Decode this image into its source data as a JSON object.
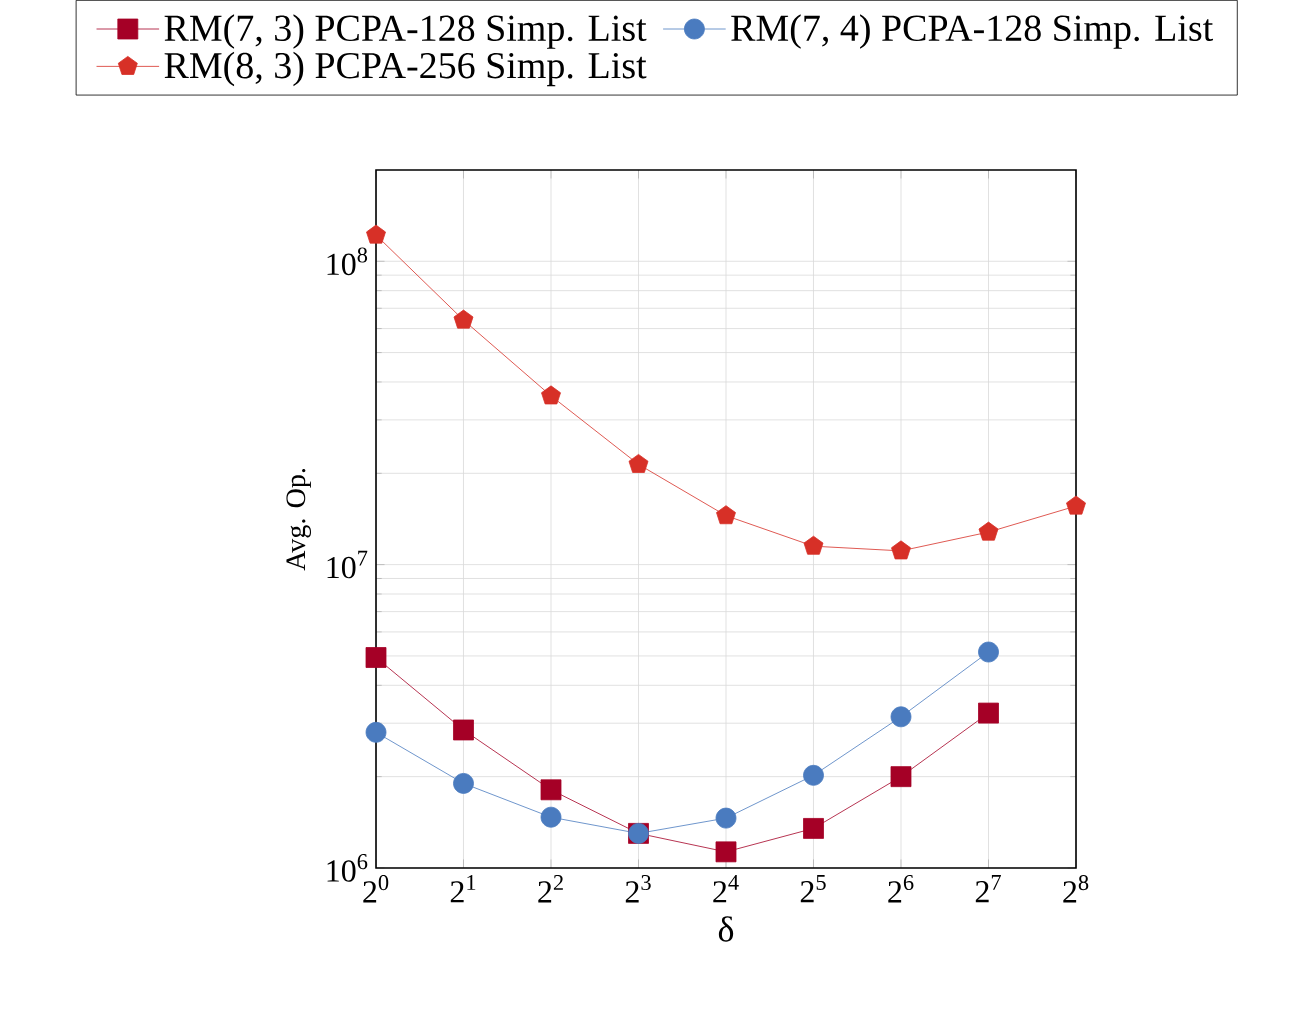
{
  "chart_data": {
    "type": "line",
    "xlabel": "δ",
    "ylabel": "Avg. Op.",
    "log": "xy",
    "grid": true,
    "legend": "top",
    "line_style": "solid",
    "x": [
      1,
      2,
      4,
      8,
      16,
      32,
      64,
      128,
      256
    ],
    "xlim": [
      1,
      256
    ],
    "ylim": [
      1000000,
      200000000
    ],
    "xticks": [
      {
        "value": 1,
        "label": "2$^{0}$"
      },
      {
        "value": 2,
        "label": "2$^{1}$"
      },
      {
        "value": 4,
        "label": "2$^{2}$"
      },
      {
        "value": 8,
        "label": "2$^{3}$"
      },
      {
        "value": 16,
        "label": "2$^{4}$"
      },
      {
        "value": 32,
        "label": "2$^{5}$"
      },
      {
        "value": 64,
        "label": "2$^{6}$"
      },
      {
        "value": 128,
        "label": "2$^{7}$"
      },
      {
        "value": 256,
        "label": "2$^{8}$"
      }
    ],
    "yticks": [
      {
        "value": 1000000,
        "label": "10$^{6}$"
      },
      {
        "value": 10000000,
        "label": "10$^{7}$"
      },
      {
        "value": 100000000,
        "label": "10$^{8}$"
      }
    ],
    "series": [
      {
        "name": "RM(7, 3) PCPA-128 Simp. List",
        "color": "#a50026",
        "marker": "square",
        "values": [
          4940000,
          2850000,
          1810000,
          1300000,
          1130000,
          1350000,
          2000000,
          3240000,
          null
        ]
      },
      {
        "name": "RM(7, 4) PCPA-128 Simp. List",
        "color": "#4a7bbf",
        "marker": "circle",
        "values": [
          2800000,
          1900000,
          1470000,
          1300000,
          1460000,
          2020000,
          3150000,
          5150000,
          null
        ]
      },
      {
        "name": "RM(8, 3) PCPA-256 Simp. List",
        "color": "#d73027",
        "marker": "star",
        "values": [
          122000000,
          64000000,
          36000000,
          21400000,
          14500000,
          11500000,
          11100000,
          12800000,
          15600000
        ]
      }
    ]
  }
}
